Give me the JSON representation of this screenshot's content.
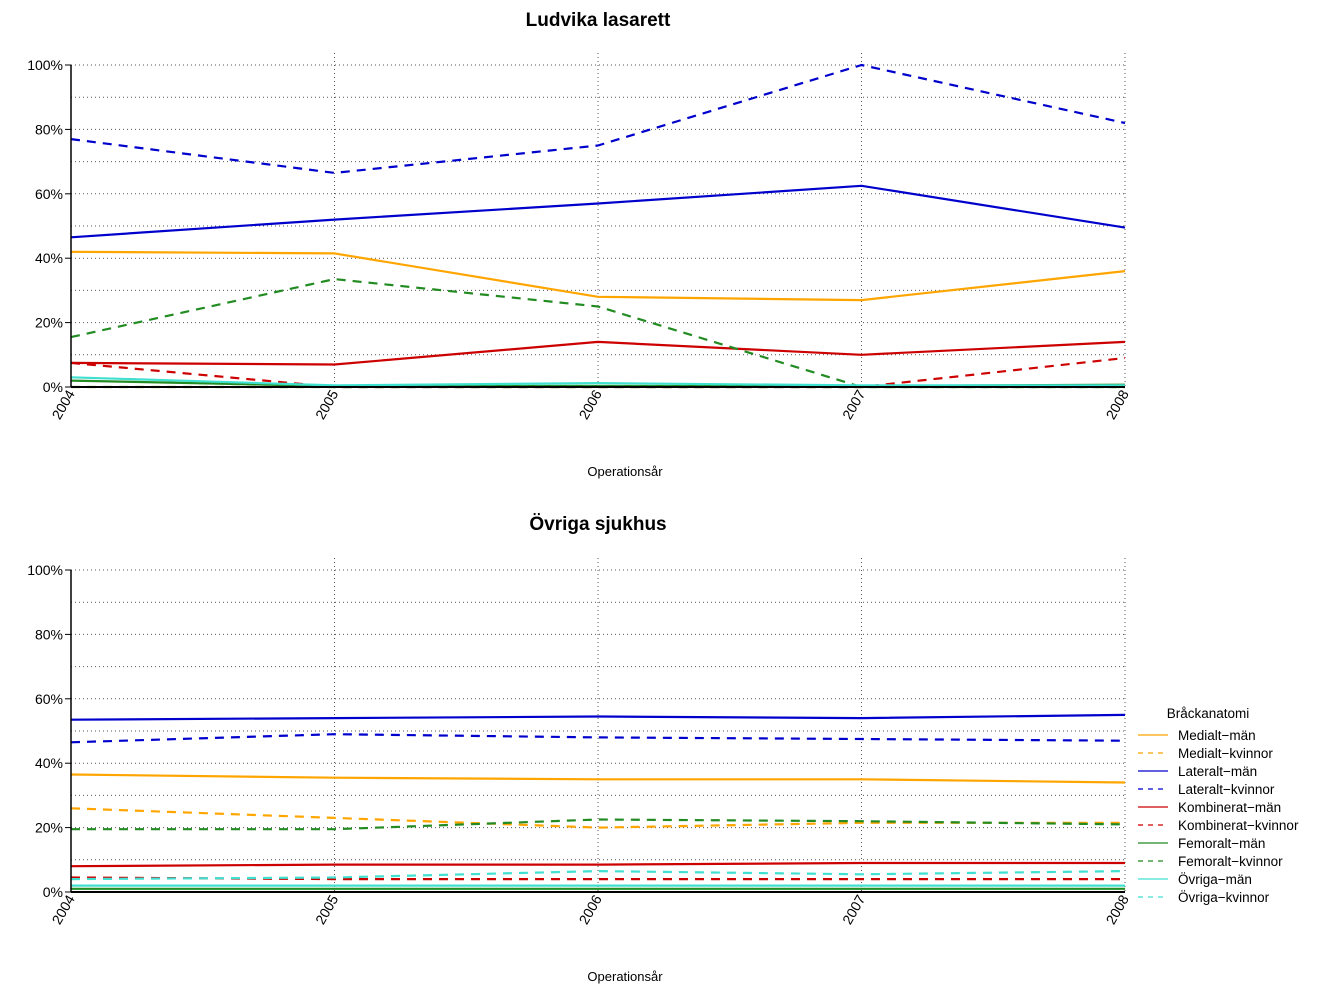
{
  "colors": {
    "Mediale": "#FFA500",
    "Lateralt": "#0000CD",
    "Kombinerat": "#CD0000",
    "Femoralt": "#228B22",
    "Ovriga": "#40E0D0",
    "grid": "#555555",
    "baseline": "#000000"
  },
  "legend": {
    "title": "Bråckanatomi",
    "entries": [
      {
        "label": "Medialt−män",
        "color": "#FFA500",
        "dash": false
      },
      {
        "label": "Medialt−kvinnor",
        "color": "#FFA500",
        "dash": true
      },
      {
        "label": "Lateralt−män",
        "color": "#0000CD",
        "dash": false
      },
      {
        "label": "Lateralt−kvinnor",
        "color": "#0000CD",
        "dash": true
      },
      {
        "label": "Kombinerat−män",
        "color": "#CD0000",
        "dash": false
      },
      {
        "label": "Kombinerat−kvinnor",
        "color": "#CD0000",
        "dash": true
      },
      {
        "label": "Femoralt−män",
        "color": "#228B22",
        "dash": false
      },
      {
        "label": "Femoralt−kvinnor",
        "color": "#228B22",
        "dash": true
      },
      {
        "label": "Övriga−män",
        "color": "#40E0D0",
        "dash": false
      },
      {
        "label": "Övriga−kvinnor",
        "color": "#40E0D0",
        "dash": true
      }
    ]
  },
  "chart_data": [
    {
      "type": "line",
      "title": "Ludvika lasarett",
      "xlabel": "Operationsår",
      "ylabel": "",
      "x": [
        "2004",
        "2005",
        "2006",
        "2007",
        "2008"
      ],
      "yticks": [
        "0%",
        "20%",
        "40%",
        "60%",
        "80%",
        "100%"
      ],
      "ylim": [
        0,
        100
      ],
      "grid": true,
      "series": [
        {
          "name": "Medialt−män",
          "color": "#FFA500",
          "dash": false,
          "values": [
            42,
            41.5,
            28,
            27,
            36
          ]
        },
        {
          "name": "Medialt−kvinnor",
          "color": "#FFA500",
          "dash": true,
          "values": [
            0,
            0,
            0,
            0,
            0
          ]
        },
        {
          "name": "Lateralt−män",
          "color": "#0000CD",
          "dash": false,
          "values": [
            46.5,
            52,
            57,
            62.5,
            49.5
          ]
        },
        {
          "name": "Lateralt−kvinnor",
          "color": "#0000CD",
          "dash": true,
          "values": [
            77,
            66.5,
            75,
            100,
            82
          ]
        },
        {
          "name": "Kombinerat−män",
          "color": "#CD0000",
          "dash": false,
          "values": [
            7.5,
            7,
            14,
            10,
            14
          ]
        },
        {
          "name": "Kombinerat−kvinnor",
          "color": "#CD0000",
          "dash": true,
          "values": [
            7.5,
            0,
            0,
            0,
            9
          ]
        },
        {
          "name": "Femoralt−män",
          "color": "#228B22",
          "dash": false,
          "values": [
            2,
            0.3,
            0.3,
            0.3,
            0.7
          ]
        },
        {
          "name": "Femoralt−kvinnor",
          "color": "#228B22",
          "dash": true,
          "values": [
            15.5,
            33.5,
            25,
            0,
            0
          ]
        },
        {
          "name": "Övriga−män",
          "color": "#40E0D0",
          "dash": false,
          "values": [
            3,
            0.5,
            1.2,
            0.5,
            0.5
          ]
        },
        {
          "name": "Övriga−kvinnor",
          "color": "#40E0D0",
          "dash": true,
          "values": [
            0,
            0,
            0,
            0,
            0
          ]
        }
      ]
    },
    {
      "type": "line",
      "title": "Övriga sjukhus",
      "xlabel": "Operationsår",
      "ylabel": "",
      "x": [
        "2004",
        "2005",
        "2006",
        "2007",
        "2008"
      ],
      "yticks": [
        "0%",
        "20%",
        "40%",
        "60%",
        "80%",
        "100%"
      ],
      "ylim": [
        0,
        100
      ],
      "grid": true,
      "series": [
        {
          "name": "Medialt−män",
          "color": "#FFA500",
          "dash": false,
          "values": [
            36.5,
            35.5,
            35,
            35,
            34
          ]
        },
        {
          "name": "Medialt−kvinnor",
          "color": "#FFA500",
          "dash": true,
          "values": [
            26,
            23,
            20,
            21.5,
            21.5
          ]
        },
        {
          "name": "Lateralt−män",
          "color": "#0000CD",
          "dash": false,
          "values": [
            53.5,
            54,
            54.5,
            54,
            55
          ]
        },
        {
          "name": "Lateralt−kvinnor",
          "color": "#0000CD",
          "dash": true,
          "values": [
            46.5,
            49,
            48,
            47.5,
            47
          ]
        },
        {
          "name": "Kombinerat−män",
          "color": "#CD0000",
          "dash": false,
          "values": [
            8,
            8.5,
            8.5,
            9,
            9
          ]
        },
        {
          "name": "Kombinerat−kvinnor",
          "color": "#CD0000",
          "dash": true,
          "values": [
            4.5,
            4,
            4,
            4,
            4
          ]
        },
        {
          "name": "Femoralt−män",
          "color": "#228B22",
          "dash": false,
          "values": [
            1,
            1,
            1,
            1,
            1
          ]
        },
        {
          "name": "Femoralt−kvinnor",
          "color": "#228B22",
          "dash": true,
          "values": [
            19.5,
            19.5,
            22.5,
            22,
            21
          ]
        },
        {
          "name": "Övriga−män",
          "color": "#40E0D0",
          "dash": false,
          "values": [
            2,
            2,
            2,
            2,
            2
          ]
        },
        {
          "name": "Övriga−kvinnor",
          "color": "#40E0D0",
          "dash": true,
          "values": [
            4,
            4.5,
            6.5,
            5.5,
            6.5
          ]
        }
      ]
    }
  ]
}
